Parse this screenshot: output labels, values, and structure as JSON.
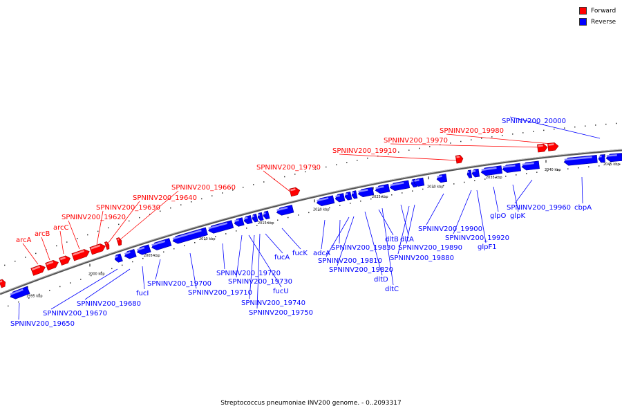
{
  "legend": {
    "forward": {
      "label": "Forward",
      "color": "#ff0000"
    },
    "reverse": {
      "label": "Reverse",
      "color": "#0000ff"
    }
  },
  "caption": "Streptococcus pneumoniae INV200 genome. - 0..2093317",
  "chart_data": {
    "type": "genome-map",
    "range_kbp": [
      1993,
      2047
    ],
    "scale_ticks": [
      "1995 kbp",
      "2000 kbp",
      "2005 kbp",
      "2010 kbp",
      "2015 kbp",
      "2020 kbp",
      "2025 kbp",
      "2030 kbp",
      "2035 kbp",
      "2040 kbp",
      "2045 kbp"
    ],
    "labeled_genes": [
      {
        "name": "arcA",
        "strand": "forward"
      },
      {
        "name": "arcB",
        "strand": "forward"
      },
      {
        "name": "arcC",
        "strand": "forward"
      },
      {
        "name": "SPNINV200_19620",
        "strand": "forward"
      },
      {
        "name": "SPNINV200_19630",
        "strand": "forward"
      },
      {
        "name": "SPNINV200_19640",
        "strand": "forward"
      },
      {
        "name": "SPNINV200_19660",
        "strand": "forward"
      },
      {
        "name": "SPNINV200_19790",
        "strand": "forward"
      },
      {
        "name": "SPNINV200_19910",
        "strand": "forward"
      },
      {
        "name": "SPNINV200_19970",
        "strand": "forward"
      },
      {
        "name": "SPNINV200_19980",
        "strand": "forward"
      },
      {
        "name": "SPNINV200_20000",
        "strand": "reverse"
      },
      {
        "name": "SPNINV200_19650",
        "strand": "reverse"
      },
      {
        "name": "SPNINV200_19670",
        "strand": "reverse"
      },
      {
        "name": "SPNINV200_19680",
        "strand": "reverse"
      },
      {
        "name": "fucI",
        "strand": "reverse"
      },
      {
        "name": "SPNINV200_19700",
        "strand": "reverse"
      },
      {
        "name": "SPNINV200_19710",
        "strand": "reverse"
      },
      {
        "name": "SPNINV200_19720",
        "strand": "reverse"
      },
      {
        "name": "SPNINV200_19730",
        "strand": "reverse"
      },
      {
        "name": "fucU",
        "strand": "reverse"
      },
      {
        "name": "SPNINV200_19740",
        "strand": "reverse"
      },
      {
        "name": "SPNINV200_19750",
        "strand": "reverse"
      },
      {
        "name": "fucA",
        "strand": "reverse"
      },
      {
        "name": "fucK",
        "strand": "reverse"
      },
      {
        "name": "adcA",
        "strand": "reverse"
      },
      {
        "name": "SPNINV200_19830",
        "strand": "reverse"
      },
      {
        "name": "SPNINV200_19810",
        "strand": "reverse"
      },
      {
        "name": "SPNINV200_19820",
        "strand": "reverse"
      },
      {
        "name": "dltD",
        "strand": "reverse"
      },
      {
        "name": "dltC",
        "strand": "reverse"
      },
      {
        "name": "dltB",
        "strand": "reverse"
      },
      {
        "name": "dltA",
        "strand": "reverse"
      },
      {
        "name": "SPNINV200_19890",
        "strand": "reverse"
      },
      {
        "name": "SPNINV200_19880",
        "strand": "reverse"
      },
      {
        "name": "SPNINV200_19900",
        "strand": "reverse"
      },
      {
        "name": "SPNINV200_19920",
        "strand": "reverse"
      },
      {
        "name": "glpF1",
        "strand": "reverse"
      },
      {
        "name": "glpO",
        "strand": "reverse"
      },
      {
        "name": "glpK",
        "strand": "reverse"
      },
      {
        "name": "SPNINV200_19960",
        "strand": "reverse"
      },
      {
        "name": "cbpA",
        "strand": "reverse"
      }
    ]
  }
}
